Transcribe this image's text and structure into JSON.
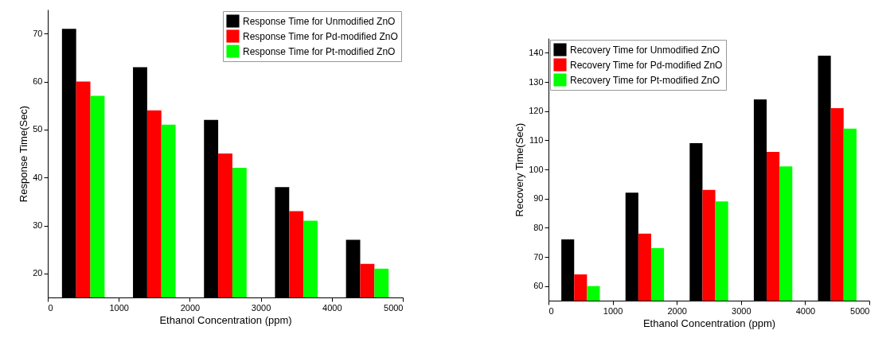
{
  "chart_data": [
    {
      "type": "bar",
      "xlabel": "Ethanol Concentration (ppm)",
      "ylabel": "Response Time(Sec)",
      "xlim": [
        0,
        5000
      ],
      "xticks": [
        0,
        1000,
        2000,
        3000,
        4000,
        5000
      ],
      "ylim": [
        15,
        75
      ],
      "yticks": [
        20,
        30,
        40,
        50,
        60,
        70
      ],
      "legend": "top right",
      "series": [
        {
          "name": "Response Time for Unmodified ZnO",
          "color": "#000000",
          "x": [
            300,
            1300,
            2300,
            3300,
            4300
          ],
          "values": [
            71,
            63,
            52,
            38,
            27
          ]
        },
        {
          "name": "Response Time for Pd-modified ZnO",
          "color": "#ff0000",
          "x": [
            500,
            1500,
            2500,
            3500,
            4500
          ],
          "values": [
            60,
            54,
            45,
            33,
            22
          ]
        },
        {
          "name": "Response Time for Pt-modified ZnO",
          "color": "#00ff00",
          "x": [
            700,
            1700,
            2700,
            3700,
            4700
          ],
          "values": [
            57,
            51,
            42,
            31,
            21
          ]
        }
      ]
    },
    {
      "type": "bar",
      "xlabel": "Ethanol Concentration (ppm)",
      "ylabel": "Recovery Time(Sec)",
      "xlim": [
        0,
        5000
      ],
      "xticks": [
        0,
        1000,
        2000,
        3000,
        4000,
        5000
      ],
      "ylim": [
        55,
        145
      ],
      "yticks": [
        60,
        70,
        80,
        90,
        100,
        110,
        120,
        130,
        140
      ],
      "legend": "top left",
      "series": [
        {
          "name": "Recovery Time for Unmodified ZnO",
          "color": "#000000",
          "x": [
            300,
            1300,
            2300,
            3300,
            4300
          ],
          "values": [
            76,
            92,
            109,
            124,
            139
          ]
        },
        {
          "name": "Recovery Time for Pd-modified ZnO",
          "color": "#ff0000",
          "x": [
            500,
            1500,
            2500,
            3500,
            4500
          ],
          "values": [
            64,
            78,
            93,
            106,
            121
          ]
        },
        {
          "name": "Recovery Time for Pt-modified ZnO",
          "color": "#00ff00",
          "x": [
            700,
            1700,
            2700,
            3700,
            4700
          ],
          "values": [
            60,
            73,
            89,
            101,
            114
          ]
        }
      ]
    }
  ]
}
